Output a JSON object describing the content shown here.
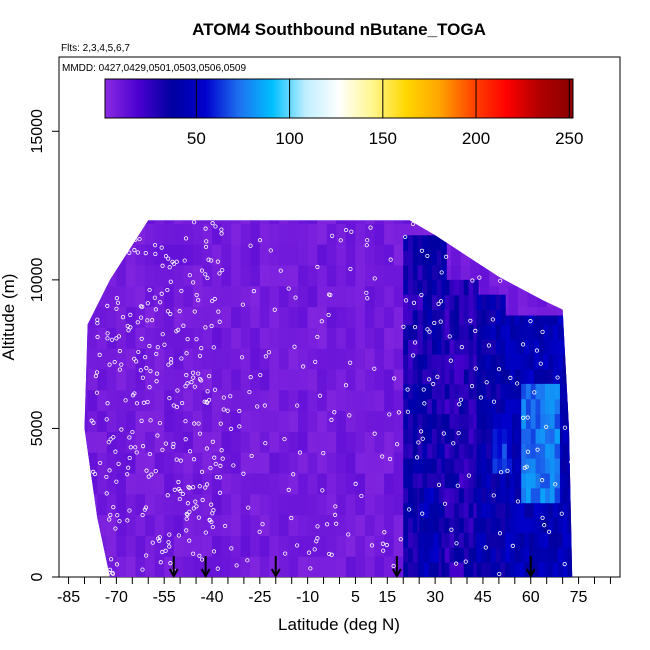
{
  "chart_data": {
    "type": "heatmap",
    "title": "ATOM4 Southbound nButane_TOGA",
    "flights_label": "Flts: 2,3,4,5,6,7",
    "mmdd_label": "MMDD: 0427,0429,0501,0503,0506,0509",
    "xlabel": "Latitude (deg N)",
    "ylabel": "Altitude (m)",
    "xlim": [
      -88,
      88
    ],
    "ylim": [
      0,
      17500
    ],
    "x_ticks": [
      "-85",
      "-70",
      "-55",
      "-40",
      "-25",
      "-10",
      "5",
      "15",
      "30",
      "45",
      "60",
      "75"
    ],
    "x_tick_values": [
      -85,
      -70,
      -55,
      -40,
      -25,
      -10,
      5,
      15,
      30,
      45,
      60,
      75
    ],
    "y_ticks": [
      "0",
      "5000",
      "10000",
      "15000"
    ],
    "y_tick_values": [
      0,
      5000,
      10000,
      15000
    ],
    "colorbar": {
      "range": [
        1,
        252
      ],
      "ticks": [
        "50",
        "100",
        "150",
        "200",
        "250"
      ],
      "tick_values": [
        50,
        100,
        150,
        200,
        250
      ],
      "colors": [
        "#8b2be2",
        "#4b00d0",
        "#0000a0",
        "#0000cd",
        "#1e6ff0",
        "#00bfff",
        "#bfefff",
        "#ffffff",
        "#fff68f",
        "#ffd700",
        "#ffa500",
        "#ff4500",
        "#ff0000",
        "#b00000",
        "#8b0000"
      ]
    },
    "arrow_latitudes": [
      -52,
      -42,
      -20,
      18,
      60
    ],
    "envelope": [
      [
        -80,
        5000
      ],
      [
        -79,
        8500
      ],
      [
        -72,
        10000
      ],
      [
        -66,
        11000
      ],
      [
        -60,
        12000
      ],
      [
        -20,
        12000
      ],
      [
        22,
        12000
      ],
      [
        30,
        11500
      ],
      [
        40,
        10800
      ],
      [
        50,
        10100
      ],
      [
        64,
        9300
      ],
      [
        70,
        9000
      ],
      [
        72,
        5000
      ],
      [
        73,
        0
      ],
      [
        -72,
        0
      ],
      [
        -76,
        2000
      ]
    ],
    "background_value": 8,
    "patches": [
      {
        "lat": [
          20,
          33
        ],
        "alt": [
          0,
          11500
        ],
        "value": 35
      },
      {
        "lat": [
          33,
          43
        ],
        "alt": [
          0,
          10000
        ],
        "value": 30
      },
      {
        "lat": [
          43,
          52
        ],
        "alt": [
          0,
          9500
        ],
        "value": 40
      },
      {
        "lat": [
          52,
          73
        ],
        "alt": [
          0,
          8800
        ],
        "value": 45
      },
      {
        "lat": [
          57,
          68
        ],
        "alt": [
          2500,
          6500
        ],
        "value": 75
      },
      {
        "lat": [
          48,
          53
        ],
        "alt": [
          3500,
          5500
        ],
        "value": 60
      },
      {
        "lat": [
          20,
          26
        ],
        "alt": [
          7000,
          9500
        ],
        "value": 30
      },
      {
        "lat": [
          25,
          30
        ],
        "alt": [
          0,
          3000
        ],
        "value": 45
      }
    ]
  }
}
